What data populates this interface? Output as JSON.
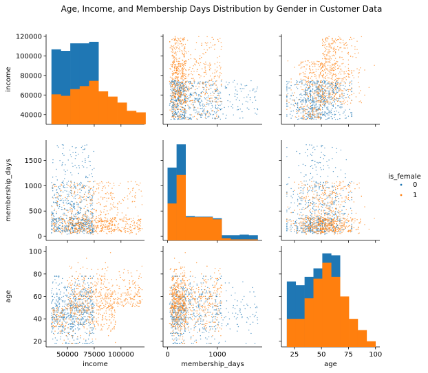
{
  "chart_data": {
    "type": "scatter",
    "title": "Age, Income, and Membership Days Distribution by Gender in Customer Data",
    "variables": [
      "income",
      "membership_days",
      "age"
    ],
    "axis_labels": {
      "income": "income",
      "membership_days": "membership_days",
      "age": "age"
    },
    "ranges": {
      "income": [
        30000,
        122000
      ],
      "membership_days": [
        -80,
        1900
      ],
      "age": [
        15,
        105
      ]
    },
    "ticks": {
      "income": {
        "values": [
          50000,
          75000,
          100000
        ],
        "labels": [
          "50000",
          "75000",
          "100000"
        ]
      },
      "income_y": {
        "values": [
          40000,
          60000,
          80000,
          100000,
          120000
        ],
        "labels": [
          "40000",
          "60000",
          "80000",
          "100000",
          "120000"
        ]
      },
      "membership_days": {
        "values": [
          0,
          500,
          1000,
          1500
        ],
        "labels": [
          "0",
          "500",
          "1000",
          "1500"
        ]
      },
      "membership_days_x": {
        "values": [
          0,
          1000
        ],
        "labels": [
          "0",
          "1000"
        ]
      },
      "age": {
        "values": [
          20,
          40,
          60,
          80,
          100
        ],
        "labels": [
          "20",
          "40",
          "60",
          "80",
          "100"
        ]
      },
      "age_x": {
        "values": [
          25,
          50,
          75,
          100
        ],
        "labels": [
          "25",
          "50",
          "75",
          "100"
        ]
      }
    },
    "legend": {
      "title": "is_female",
      "placement": "right",
      "entries": [
        {
          "label": "0",
          "color": "#1f77b4"
        },
        {
          "label": "1",
          "color": "#ff7f0e"
        }
      ]
    },
    "series": [
      {
        "name": "0",
        "color": "#1f77b4",
        "hist": {
          "income": {
            "edges": [
              35000,
              43800,
              52600,
              61400,
              70200,
              79000,
              87800,
              96600,
              105400,
              114200,
              123000
            ],
            "values": [
              1.0,
              0.98,
              1.08,
              1.08,
              1.1,
              0.0,
              0.0,
              0.0,
              0.0,
              0.0
            ]
          },
          "membership_days": {
            "edges": [
              0,
              181,
              362,
              543,
              724,
              905,
              1086,
              1267,
              1448,
              1629,
              1810
            ],
            "values": [
              1.38,
              1.82,
              0.46,
              0.45,
              0.45,
              0.42,
              0.1,
              0.1,
              0.11,
              0.1
            ]
          },
          "age": {
            "edges": [
              18,
              26.2,
              34.4,
              42.6,
              50.8,
              59,
              67.2,
              75.4,
              83.6,
              91.8,
              100
            ],
            "values": [
              0.7,
              0.66,
              0.75,
              0.84,
              1.0,
              0.98,
              0.0,
              0.0,
              0.0,
              0.0
            ]
          }
        }
      },
      {
        "name": "1",
        "color": "#ff7f0e",
        "hist": {
          "income": {
            "edges": [
              35000,
              43800,
              52600,
              61400,
              70200,
              79000,
              87800,
              96600,
              105400,
              114200,
              123000
            ],
            "values": [
              0.4,
              0.38,
              0.47,
              0.51,
              0.58,
              0.44,
              0.37,
              0.29,
              0.18,
              0.16
            ]
          },
          "membership_days": {
            "edges": [
              0,
              181,
              362,
              543,
              724,
              905,
              1086,
              1267,
              1448,
              1629,
              1810
            ],
            "values": [
              0.7,
              1.24,
              0.44,
              0.44,
              0.44,
              0.4,
              0.04,
              0.02,
              0.02,
              0.02
            ]
          },
          "age": {
            "edges": [
              18,
              26.2,
              34.4,
              42.6,
              50.8,
              59,
              67.2,
              75.4,
              83.6,
              91.8,
              100
            ],
            "values": [
              0.3,
              0.3,
              0.52,
              0.73,
              0.9,
              0.75,
              0.54,
              0.3,
              0.18,
              0.06
            ]
          }
        }
      }
    ]
  }
}
